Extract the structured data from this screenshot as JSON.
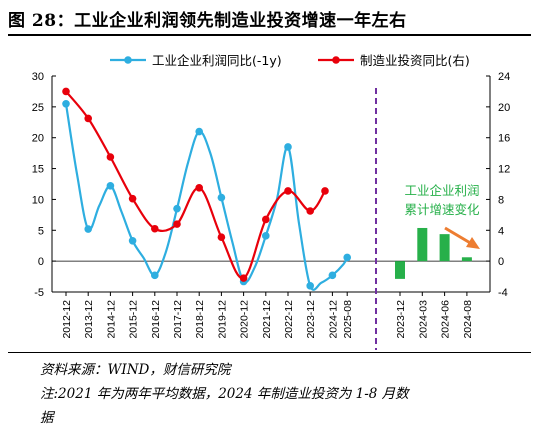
{
  "figure": {
    "title": "图 28：工业企业利润领先制造业投资增速一年左右",
    "source": "资料来源：WIND，财信研究院",
    "note_line1": "注:2021 年为两年平均数据，2024 年制造业投资为 1-8 月数",
    "note_line2": "据"
  },
  "colors": {
    "profit_line": "#2eaee0",
    "investment_line": "#e8000b",
    "bars": "#27b04a",
    "divider": "#7030a0",
    "arrow": "#ed7d31",
    "annotation_text": "#27b04a"
  },
  "chart_data": [
    {
      "type": "line",
      "series": [
        {
          "name": "工业企业利润同比(-1y)",
          "axis": "left",
          "marker": "circle",
          "x": [
            "2012-12",
            "2013-06",
            "2013-12",
            "2014-06",
            "2014-12",
            "2015-06",
            "2015-12",
            "2016-06",
            "2016-12",
            "2017-06",
            "2017-12",
            "2018-06",
            "2018-12",
            "2019-06",
            "2019-12",
            "2020-06",
            "2020-12",
            "2021-06",
            "2021-12",
            "2022-06",
            "2022-12",
            "2023-06",
            "2023-12",
            "2024-06",
            "2024-12",
            "2025-06",
            "2025-08"
          ],
          "values": [
            25.5,
            14.0,
            5.2,
            9.0,
            12.2,
            8.0,
            3.3,
            0.5,
            -2.3,
            1.5,
            8.5,
            16.0,
            21.0,
            17.5,
            10.3,
            3.0,
            -3.3,
            -1.0,
            4.1,
            10.0,
            18.5,
            6.0,
            -4.0,
            -3.5,
            -2.3,
            -0.5,
            0.6
          ]
        },
        {
          "name": "制造业投资同比(右)",
          "axis": "right",
          "marker": "circle",
          "x": [
            "2012-12",
            "2013-12",
            "2014-12",
            "2015-12",
            "2016-12",
            "2017-12",
            "2018-12",
            "2019-12",
            "2020-12",
            "2021-12",
            "2022-12",
            "2023-12",
            "2024-08"
          ],
          "values": [
            22.0,
            18.5,
            13.5,
            8.1,
            4.2,
            4.8,
            9.5,
            3.1,
            -2.2,
            5.4,
            9.1,
            6.5,
            9.1
          ]
        }
      ],
      "x_tick_labels": [
        "2012-12",
        "2013-12",
        "2014-12",
        "2015-12",
        "2016-12",
        "2017-12",
        "2018-12",
        "2019-12",
        "2020-12",
        "2021-12",
        "2022-12",
        "2023-12",
        "2024-12",
        "2025-08"
      ],
      "left_axis": {
        "ylim": [
          -5,
          30
        ],
        "ticks": [
          -5,
          0,
          5,
          10,
          15,
          20,
          25,
          30
        ]
      },
      "right_axis": {
        "ylim": [
          -4,
          24
        ],
        "ticks": [
          -4,
          0,
          4,
          8,
          12,
          16,
          20,
          24
        ]
      },
      "legend": "top",
      "grid": false
    },
    {
      "type": "bar",
      "name": "工业企业利润累计增速变化",
      "axis": "right",
      "categories": [
        "2023-12",
        "2024-03",
        "2024-06",
        "2024-08"
      ],
      "values": [
        -2.3,
        4.3,
        3.5,
        0.5
      ],
      "annotation_lines": [
        "工业企业利润",
        "累计增速变化"
      ]
    }
  ]
}
